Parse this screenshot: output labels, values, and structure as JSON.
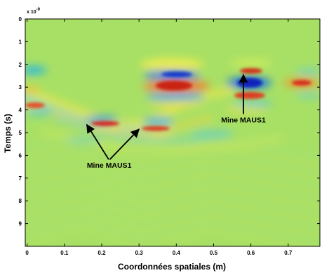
{
  "chart_data": {
    "type": "heatmap",
    "title": "",
    "xlabel": "Coordonnées spatiales (m)",
    "ylabel": "Temps (s)",
    "y_scale_label": "x 10",
    "y_scale_exponent": "-9",
    "xlim": [
      -0.005,
      0.785
    ],
    "ylim": [
      0,
      10
    ],
    "y_reversed": true,
    "x_ticks": [
      0,
      0.1,
      0.2,
      0.3,
      0.4,
      0.5,
      0.6,
      0.7
    ],
    "x_tick_labels": [
      "0",
      "0.1",
      "0.2",
      "0.3",
      "0.4",
      "0.5",
      "0.6",
      "0.7"
    ],
    "y_ticks": [
      0,
      1,
      2,
      3,
      4,
      5,
      6,
      7,
      8,
      9
    ],
    "y_tick_labels": [
      "0",
      "1",
      "2",
      "3",
      "4",
      "5",
      "6",
      "7",
      "8",
      "9"
    ],
    "colormap": "jet",
    "background_color": "#a8e065",
    "grid": false,
    "annotations": [
      {
        "text": "Mine MAUS1",
        "label_at": [
          0.58,
          4.55
        ],
        "arrow_tips": [
          [
            0.58,
            2.45
          ]
        ]
      },
      {
        "text": "Mine MAUS1",
        "label_at": [
          0.22,
          6.55
        ],
        "arrow_tips": [
          [
            0.16,
            4.65
          ],
          [
            0.3,
            4.85
          ]
        ]
      }
    ]
  }
}
